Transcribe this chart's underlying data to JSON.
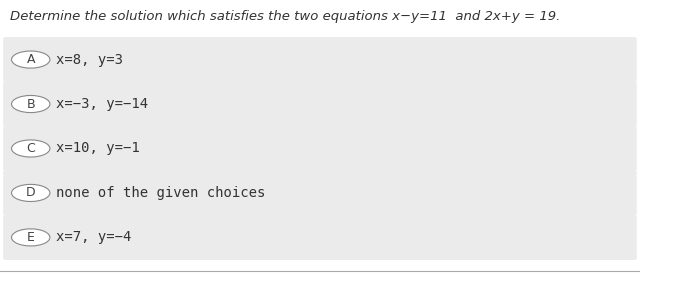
{
  "title": "Determine the solution which satisfies the two equations x−y=11  and 2x+y = 19.",
  "page_bg": "#ffffff",
  "options": [
    {
      "label": "A",
      "text": "x=8, y=3"
    },
    {
      "label": "B",
      "text": "x=−3, y=−14"
    },
    {
      "label": "C",
      "text": "x=10, y=−1"
    },
    {
      "label": "D",
      "text": "none of the given choices"
    },
    {
      "label": "E",
      "text": "x=7, y=−4"
    }
  ],
  "option_bg": "#ebebeb",
  "circle_edge_color": "#888888",
  "title_fontsize": 9.5,
  "option_fontsize": 10,
  "label_fontsize": 9
}
